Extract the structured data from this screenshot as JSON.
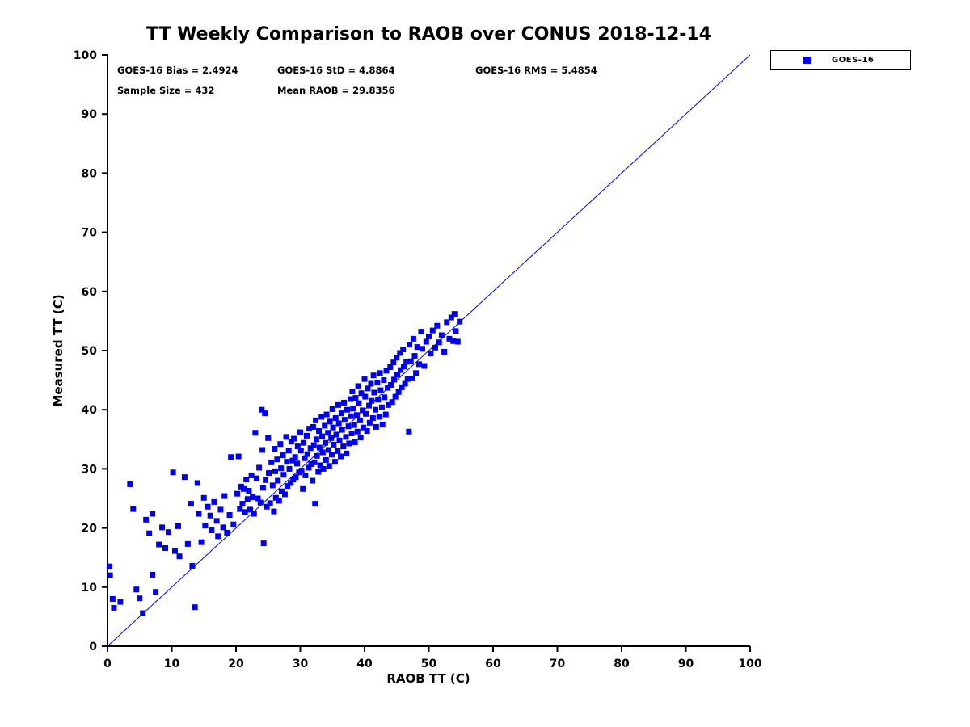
{
  "title": "TT Weekly Comparison to RAOB over CONUS 2018-12-14",
  "stats": {
    "line1": [
      "GOES-16 Bias = 2.4924",
      "GOES-16 StD = 4.8864",
      "GOES-16 RMS = 5.4854"
    ],
    "line2": [
      "Sample Size = 432",
      "Mean RAOB = 29.8356"
    ]
  },
  "legend": {
    "entries": [
      {
        "label": "GOES-16",
        "marker": "square",
        "color": "#0000f0"
      }
    ],
    "position": "top-right-outside"
  },
  "chart_data": {
    "type": "scatter",
    "title": "TT Weekly Comparison to RAOB over CONUS 2018-12-14",
    "xlabel": "RAOB TT (C)",
    "ylabel": "Measured TT (C)",
    "xlim": [
      0,
      100
    ],
    "ylim": [
      0,
      100
    ],
    "xticks": [
      0,
      10,
      20,
      30,
      40,
      50,
      60,
      70,
      80,
      90,
      100
    ],
    "yticks": [
      0,
      10,
      20,
      30,
      40,
      50,
      60,
      70,
      80,
      90,
      100
    ],
    "grid": false,
    "identity_line": {
      "from": [
        0,
        0
      ],
      "to": [
        100,
        100
      ],
      "color": "#0000f0",
      "width": 1
    },
    "stats": {
      "bias": 2.4924,
      "std": 4.8864,
      "rms": 5.4854,
      "sample_size": 432,
      "mean_raob": 29.8356
    },
    "series": [
      {
        "name": "GOES-16",
        "marker": "square",
        "color": "#0000f0",
        "points": [
          [
            0.3,
            13.5
          ],
          [
            0.4,
            12.0
          ],
          [
            0.8,
            8.0
          ],
          [
            1.0,
            6.5
          ],
          [
            2.0,
            7.5
          ],
          [
            3.5,
            27.4
          ],
          [
            4.0,
            23.2
          ],
          [
            4.5,
            9.6
          ],
          [
            5.0,
            8.1
          ],
          [
            5.5,
            5.6
          ],
          [
            6.0,
            21.4
          ],
          [
            6.5,
            19.1
          ],
          [
            7.0,
            22.4
          ],
          [
            7.0,
            12.1
          ],
          [
            7.5,
            9.2
          ],
          [
            8.0,
            17.2
          ],
          [
            8.5,
            20.1
          ],
          [
            9.0,
            16.6
          ],
          [
            9.5,
            19.3
          ],
          [
            10.2,
            29.4
          ],
          [
            10.5,
            16.1
          ],
          [
            11.0,
            20.3
          ],
          [
            11.2,
            15.2
          ],
          [
            12.0,
            28.6
          ],
          [
            12.5,
            17.3
          ],
          [
            13.0,
            24.1
          ],
          [
            13.2,
            13.6
          ],
          [
            13.6,
            6.6
          ],
          [
            14.0,
            27.6
          ],
          [
            14.2,
            22.4
          ],
          [
            14.6,
            17.6
          ],
          [
            15.0,
            25.1
          ],
          [
            15.2,
            20.4
          ],
          [
            15.6,
            23.6
          ],
          [
            16.0,
            22.1
          ],
          [
            16.2,
            19.6
          ],
          [
            16.6,
            24.4
          ],
          [
            17.0,
            21.2
          ],
          [
            17.2,
            18.6
          ],
          [
            17.6,
            23.1
          ],
          [
            18.0,
            20.1
          ],
          [
            18.2,
            25.4
          ],
          [
            18.6,
            19.2
          ],
          [
            19.0,
            22.2
          ],
          [
            19.2,
            32.0
          ],
          [
            19.6,
            20.6
          ],
          [
            20.2,
            25.8
          ],
          [
            20.4,
            32.1
          ],
          [
            20.6,
            23.2
          ],
          [
            20.8,
            27.0
          ],
          [
            21.0,
            24.1
          ],
          [
            21.2,
            26.6
          ],
          [
            21.4,
            22.7
          ],
          [
            21.6,
            28.2
          ],
          [
            21.8,
            24.9
          ],
          [
            22.0,
            26.3
          ],
          [
            22.2,
            23.1
          ],
          [
            22.4,
            28.9
          ],
          [
            22.6,
            25.2
          ],
          [
            22.8,
            22.4
          ],
          [
            23.0,
            36.1
          ],
          [
            23.2,
            28.4
          ],
          [
            23.4,
            25.0
          ],
          [
            23.6,
            30.2
          ],
          [
            23.8,
            24.3
          ],
          [
            24.0,
            40.0
          ],
          [
            24.1,
            33.2
          ],
          [
            24.2,
            26.8
          ],
          [
            24.3,
            17.4
          ],
          [
            24.5,
            39.4
          ],
          [
            24.6,
            28.1
          ],
          [
            24.8,
            23.6
          ],
          [
            25.0,
            35.2
          ],
          [
            25.1,
            29.3
          ],
          [
            25.3,
            24.2
          ],
          [
            25.5,
            31.1
          ],
          [
            25.7,
            27.2
          ],
          [
            25.9,
            22.8
          ],
          [
            26.0,
            33.4
          ],
          [
            26.1,
            29.6
          ],
          [
            26.2,
            25.1
          ],
          [
            26.4,
            31.6
          ],
          [
            26.5,
            28.0
          ],
          [
            26.7,
            24.6
          ],
          [
            26.9,
            34.2
          ],
          [
            27.0,
            30.1
          ],
          [
            27.1,
            26.2
          ],
          [
            27.3,
            32.3
          ],
          [
            27.4,
            29.0
          ],
          [
            27.6,
            25.7
          ],
          [
            27.8,
            35.4
          ],
          [
            27.9,
            31.2
          ],
          [
            28.0,
            27.1
          ],
          [
            28.2,
            33.1
          ],
          [
            28.3,
            30.0
          ],
          [
            28.5,
            27.6
          ],
          [
            28.6,
            34.6
          ],
          [
            28.8,
            31.4
          ],
          [
            28.9,
            28.2
          ],
          [
            29.0,
            35.1
          ],
          [
            29.2,
            32.0
          ],
          [
            29.3,
            28.6
          ],
          [
            29.5,
            30.9
          ],
          [
            29.6,
            33.8
          ],
          [
            29.8,
            29.4
          ],
          [
            30.0,
            36.2
          ],
          [
            30.1,
            33.1
          ],
          [
            30.2,
            29.7
          ],
          [
            30.4,
            26.6
          ],
          [
            30.5,
            34.4
          ],
          [
            30.7,
            31.8
          ],
          [
            30.8,
            28.9
          ],
          [
            31.0,
            35.6
          ],
          [
            31.1,
            32.5
          ],
          [
            31.3,
            30.2
          ],
          [
            31.4,
            36.8
          ],
          [
            31.6,
            33.5
          ],
          [
            31.7,
            30.8
          ],
          [
            31.9,
            28.0
          ],
          [
            32.0,
            37.1
          ],
          [
            32.1,
            34.0
          ],
          [
            32.2,
            31.1
          ],
          [
            32.3,
            24.1
          ],
          [
            32.4,
            38.2
          ],
          [
            32.5,
            35.0
          ],
          [
            32.6,
            32.2
          ],
          [
            32.8,
            29.5
          ],
          [
            32.9,
            36.4
          ],
          [
            33.0,
            33.6
          ],
          [
            33.1,
            30.6
          ],
          [
            33.3,
            38.8
          ],
          [
            33.4,
            35.5
          ],
          [
            33.5,
            32.8
          ],
          [
            33.6,
            30.0
          ],
          [
            33.8,
            37.3
          ],
          [
            33.9,
            34.4
          ],
          [
            34.0,
            31.5
          ],
          [
            34.1,
            39.2
          ],
          [
            34.3,
            36.1
          ],
          [
            34.4,
            33.2
          ],
          [
            34.5,
            30.5
          ],
          [
            34.6,
            38.0
          ],
          [
            34.8,
            35.2
          ],
          [
            34.9,
            32.4
          ],
          [
            35.0,
            40.1
          ],
          [
            35.1,
            37.0
          ],
          [
            35.2,
            34.1
          ],
          [
            35.4,
            31.2
          ],
          [
            35.5,
            38.6
          ],
          [
            35.6,
            35.8
          ],
          [
            35.8,
            33.0
          ],
          [
            35.9,
            40.8
          ],
          [
            36.0,
            37.7
          ],
          [
            36.1,
            34.8
          ],
          [
            36.3,
            32.1
          ],
          [
            36.4,
            39.4
          ],
          [
            36.5,
            36.6
          ],
          [
            36.7,
            33.8
          ],
          [
            36.8,
            41.2
          ],
          [
            36.9,
            38.3
          ],
          [
            37.1,
            35.4
          ],
          [
            37.2,
            32.6
          ],
          [
            37.3,
            40.0
          ],
          [
            37.5,
            37.2
          ],
          [
            37.6,
            34.3
          ],
          [
            37.8,
            41.8
          ],
          [
            37.9,
            38.9
          ],
          [
            38.0,
            36.0
          ],
          [
            38.1,
            43.1
          ],
          [
            38.2,
            40.2
          ],
          [
            38.4,
            37.4
          ],
          [
            38.5,
            34.5
          ],
          [
            38.6,
            42.0
          ],
          [
            38.8,
            39.1
          ],
          [
            38.9,
            36.3
          ],
          [
            39.0,
            44.0
          ],
          [
            39.1,
            41.1
          ],
          [
            39.3,
            38.2
          ],
          [
            39.4,
            35.3
          ],
          [
            39.5,
            42.8
          ],
          [
            39.7,
            39.9
          ],
          [
            39.8,
            37.0
          ],
          [
            40.0,
            45.2
          ],
          [
            40.1,
            42.2
          ],
          [
            40.2,
            39.3
          ],
          [
            40.4,
            36.4
          ],
          [
            40.5,
            43.6
          ],
          [
            40.7,
            40.7
          ],
          [
            40.8,
            37.8
          ],
          [
            41.0,
            44.4
          ],
          [
            41.1,
            41.5
          ],
          [
            41.3,
            38.6
          ],
          [
            41.4,
            45.8
          ],
          [
            41.5,
            42.9
          ],
          [
            41.7,
            40.0
          ],
          [
            41.8,
            37.1
          ],
          [
            42.0,
            44.6
          ],
          [
            42.1,
            41.7
          ],
          [
            42.3,
            38.8
          ],
          [
            42.4,
            46.2
          ],
          [
            42.5,
            43.3
          ],
          [
            42.7,
            40.4
          ],
          [
            42.8,
            37.5
          ],
          [
            43.0,
            45.0
          ],
          [
            43.1,
            42.1
          ],
          [
            43.3,
            39.2
          ],
          [
            43.4,
            46.6
          ],
          [
            43.6,
            43.7
          ],
          [
            43.7,
            40.8
          ],
          [
            44.0,
            47.2
          ],
          [
            44.1,
            44.2
          ],
          [
            44.3,
            41.3
          ],
          [
            44.5,
            48.0
          ],
          [
            44.6,
            45.1
          ],
          [
            44.8,
            42.2
          ],
          [
            45.0,
            48.8
          ],
          [
            45.1,
            45.9
          ],
          [
            45.3,
            43.0
          ],
          [
            45.5,
            49.6
          ],
          [
            45.6,
            46.7
          ],
          [
            45.8,
            43.8
          ],
          [
            46.0,
            50.2
          ],
          [
            46.1,
            47.3
          ],
          [
            46.3,
            44.4
          ],
          [
            46.5,
            48.1
          ],
          [
            46.7,
            45.2
          ],
          [
            46.9,
            36.3
          ],
          [
            47.0,
            51.0
          ],
          [
            47.2,
            48.2
          ],
          [
            47.4,
            45.3
          ],
          [
            47.6,
            52.0
          ],
          [
            47.8,
            49.1
          ],
          [
            48.0,
            46.2
          ],
          [
            48.2,
            50.6
          ],
          [
            48.5,
            47.7
          ],
          [
            48.8,
            53.2
          ],
          [
            49.0,
            50.3
          ],
          [
            49.3,
            47.4
          ],
          [
            49.6,
            51.5
          ],
          [
            50.0,
            52.4
          ],
          [
            50.3,
            49.5
          ],
          [
            50.6,
            53.4
          ],
          [
            51.0,
            50.5
          ],
          [
            51.3,
            54.2
          ],
          [
            51.6,
            51.4
          ],
          [
            52.0,
            52.6
          ],
          [
            52.4,
            49.8
          ],
          [
            52.8,
            54.8
          ],
          [
            53.2,
            52.0
          ],
          [
            53.5,
            55.6
          ],
          [
            53.8,
            51.6
          ],
          [
            54.0,
            56.2
          ],
          [
            54.2,
            53.3
          ],
          [
            54.5,
            51.5
          ],
          [
            54.8,
            54.9
          ]
        ]
      }
    ]
  }
}
